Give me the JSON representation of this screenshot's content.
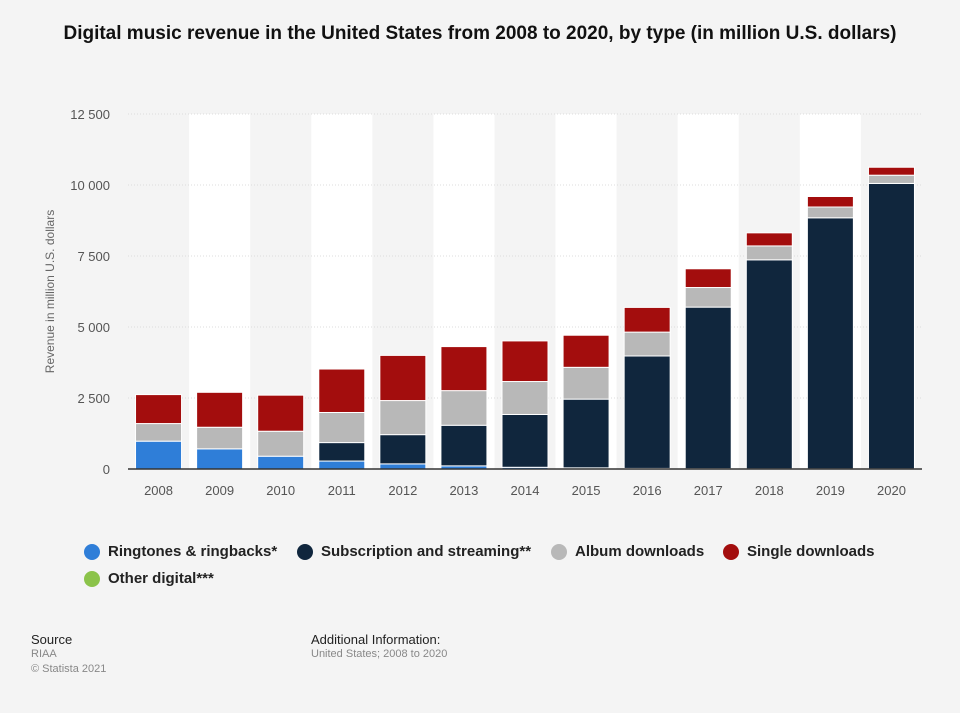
{
  "title": "Digital music revenue in the United States from 2008 to 2020, by type (in million U.S. dollars)",
  "chart_data": {
    "type": "bar",
    "stacked": true,
    "categories": [
      "2008",
      "2009",
      "2010",
      "2011",
      "2012",
      "2013",
      "2014",
      "2015",
      "2016",
      "2017",
      "2018",
      "2019",
      "2020"
    ],
    "series": [
      {
        "name": "Ringtones & ringbacks*",
        "color": "#2f7ed8",
        "values": [
          980,
          710,
          450,
          280,
          180,
          110,
          60,
          40,
          20,
          10,
          5,
          5,
          5
        ]
      },
      {
        "name": "Subscription and streaming**",
        "color": "#10263d",
        "values": [
          0,
          0,
          0,
          650,
          1030,
          1430,
          1860,
          2420,
          3960,
          5690,
          7360,
          8840,
          10050
        ]
      },
      {
        "name": "Album downloads",
        "color": "#b8b8b8",
        "values": [
          620,
          760,
          880,
          1060,
          1200,
          1220,
          1160,
          1120,
          840,
          690,
          490,
          380,
          290
        ]
      },
      {
        "name": "Single downloads",
        "color": "#a30d0d",
        "values": [
          1020,
          1230,
          1270,
          1530,
          1590,
          1550,
          1430,
          1130,
          870,
          660,
          460,
          370,
          280
        ]
      },
      {
        "name": "Other digital***",
        "color": "#8bc34a",
        "values": [
          0,
          0,
          0,
          0,
          0,
          0,
          0,
          0,
          0,
          0,
          0,
          0,
          0
        ]
      }
    ],
    "ylabel": "Revenue in million U.S. dollars",
    "xlabel": "",
    "ylim": [
      0,
      12500
    ],
    "yticks": [
      0,
      2500,
      5000,
      7500,
      10000,
      12500
    ],
    "ytick_labels": [
      "0",
      "2 500",
      "5 000",
      "7 500",
      "10 000",
      "12 500"
    ],
    "grid": true,
    "legend_position": "bottom"
  },
  "footer": {
    "source_label": "Source",
    "source_value": "RIAA",
    "copyright": "© Statista 2021",
    "additional_label": "Additional Information:",
    "additional_value": "United States; 2008 to 2020"
  }
}
